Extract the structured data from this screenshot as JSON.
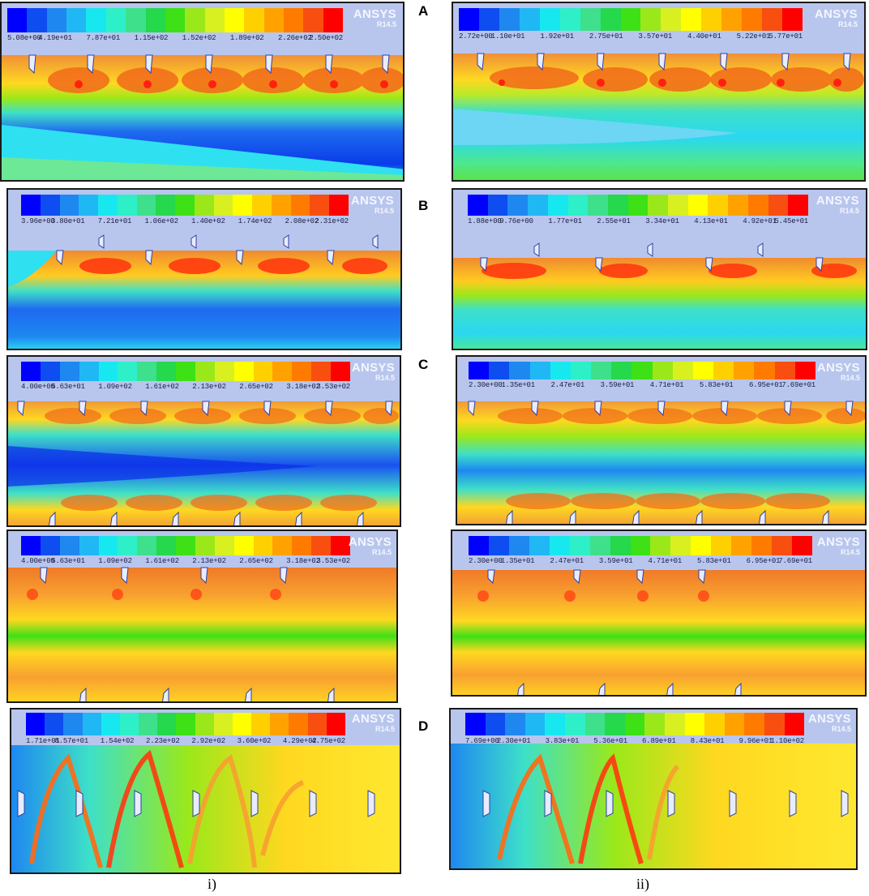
{
  "figure": {
    "row_labels": [
      "A",
      "B",
      "C",
      "D"
    ],
    "column_labels": [
      "i)",
      "ii)"
    ],
    "software_brand": "ANSYS",
    "software_version": "R14.5",
    "colorbar_colors": [
      "#0000ff",
      "#0e4df0",
      "#1e88f0",
      "#1fb8f4",
      "#17e8f0",
      "#2df0c8",
      "#3ee08c",
      "#25d84c",
      "#3ee016",
      "#9ae81a",
      "#d8f020",
      "#ffff00",
      "#ffd000",
      "#ffa200",
      "#ff7b00",
      "#f84e10",
      "#ff0000"
    ]
  },
  "panels": [
    {
      "id": "A-i",
      "row": "A",
      "column": "i)",
      "ticks": [
        "5.08e+00",
        "4.19e+01",
        "7.87e+01",
        "1.15e+02",
        "1.52e+02",
        "1.89e+02",
        "2.26e+02",
        "2.50e+02"
      ]
    },
    {
      "id": "A-ii",
      "row": "A",
      "column": "ii)",
      "ticks": [
        "2.72e+00",
        "1.10e+01",
        "1.92e+01",
        "2.75e+01",
        "3.57e+01",
        "4.40e+01",
        "5.22e+01",
        "5.77e+01"
      ]
    },
    {
      "id": "B-i",
      "row": "B",
      "column": "i)",
      "ticks": [
        "3.96e+00",
        "3.80e+01",
        "7.21e+01",
        "1.06e+02",
        "1.40e+02",
        "1.74e+02",
        "2.08e+02",
        "2.31e+02"
      ]
    },
    {
      "id": "B-ii",
      "row": "B",
      "column": "ii)",
      "ticks": [
        "1.88e+00",
        "9.76e+00",
        "1.77e+01",
        "2.55e+01",
        "3.34e+01",
        "4.13e+01",
        "4.92e+01",
        "5.45e+01"
      ]
    },
    {
      "id": "C-i-upper",
      "row": "C",
      "column": "i)",
      "ticks": [
        "4.00e+00",
        "5.63e+01",
        "1.09e+02",
        "1.61e+02",
        "2.13e+02",
        "2.65e+02",
        "3.18e+02",
        "3.53e+02"
      ]
    },
    {
      "id": "C-ii-upper",
      "row": "C",
      "column": "ii)",
      "ticks": [
        "2.30e+00",
        "1.35e+01",
        "2.47e+01",
        "3.59e+01",
        "4.71e+01",
        "5.83e+01",
        "6.95e+01",
        "7.69e+01"
      ]
    },
    {
      "id": "C-i-lower",
      "row": "C",
      "column": "i)",
      "ticks": [
        "4.00e+00",
        "5.63e+01",
        "1.09e+02",
        "1.61e+02",
        "2.13e+02",
        "2.65e+02",
        "3.18e+02",
        "3.53e+02"
      ]
    },
    {
      "id": "C-ii-lower",
      "row": "C",
      "column": "ii)",
      "ticks": [
        "2.30e+00",
        "1.35e+01",
        "2.47e+01",
        "3.59e+01",
        "4.71e+01",
        "5.83e+01",
        "6.95e+01",
        "7.69e+01"
      ]
    },
    {
      "id": "D-i",
      "row": "D",
      "column": "i)",
      "ticks": [
        "1.71e+01",
        "8.57e+01",
        "1.54e+02",
        "2.23e+02",
        "2.92e+02",
        "3.60e+02",
        "4.29e+02",
        "4.75e+02"
      ]
    },
    {
      "id": "D-ii",
      "row": "D",
      "column": "ii)",
      "ticks": [
        "7.69e+00",
        "2.30e+01",
        "3.83e+01",
        "5.36e+01",
        "6.89e+01",
        "8.43e+01",
        "9.96e+01",
        "1.10e+02"
      ]
    }
  ]
}
